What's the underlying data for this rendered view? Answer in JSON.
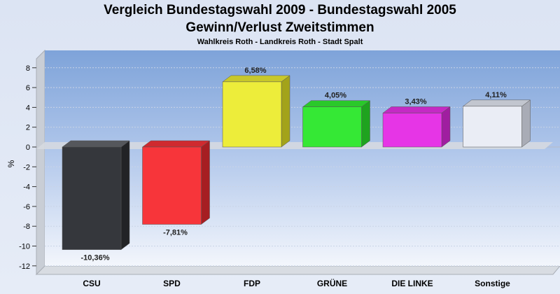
{
  "chart_data": {
    "type": "bar",
    "title": "Vergleich Bundestagswahl 2009 - Bundestagswahl 2005",
    "subtitle": "Gewinn/Verlust Zweitstimmen",
    "caption": "Wahlkreis Roth - Landkreis Roth - Stadt Spalt",
    "ylabel": "%",
    "xlabel": "",
    "ylim": [
      -12.5,
      9
    ],
    "yticks": [
      8,
      6,
      4,
      2,
      0,
      -2,
      -4,
      -6,
      -8,
      -10,
      -12
    ],
    "grid": true,
    "categories": [
      "CSU",
      "SPD",
      "FDP",
      "GRÜNE",
      "DIE LINKE",
      "Sonstige"
    ],
    "values": [
      -10.36,
      -7.81,
      6.58,
      4.05,
      3.43,
      4.11
    ],
    "value_labels": [
      "-10,36%",
      "-7,81%",
      "6,58%",
      "4,05%",
      "3,43%",
      "4,11%"
    ],
    "colors": [
      "#35373c",
      "#f7353a",
      "#eded3a",
      "#35e835",
      "#e635e6",
      "#eaedf5"
    ],
    "side_colors": [
      "#222326",
      "#a61e22",
      "#a3a31a",
      "#1fa31f",
      "#a01ea0",
      "#a9acb6"
    ],
    "top_colors": [
      "#55575c",
      "#cf2a2f",
      "#c8c82a",
      "#2ac82a",
      "#c42ac4",
      "#c2c6cf"
    ]
  }
}
